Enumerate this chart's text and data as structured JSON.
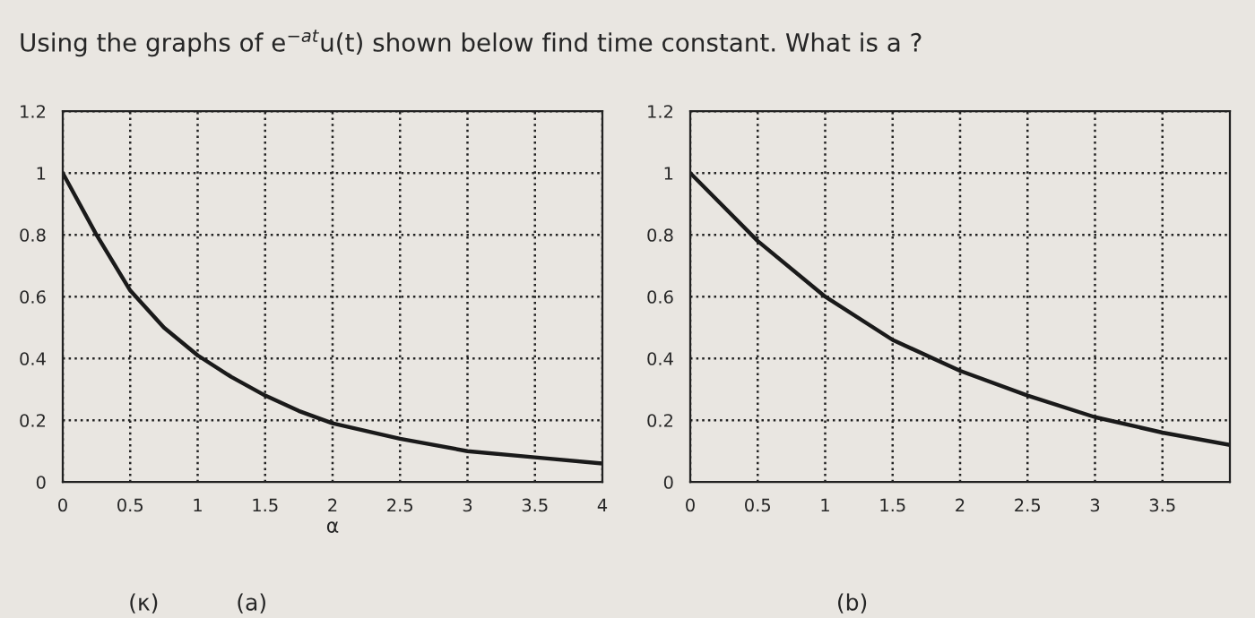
{
  "chart_data": [
    {
      "type": "line",
      "title": "Using the graphs of e$^{−at}$u(t) shown below find time constant. What is a ?",
      "xlabel": "α",
      "annotations": [
        "(κ)",
        "(a)"
      ],
      "x": [
        0,
        0.25,
        0.5,
        0.75,
        1,
        1.25,
        1.5,
        1.75,
        2,
        2.5,
        3,
        3.5,
        4
      ],
      "series": [
        {
          "color": "#1a1a1a",
          "values": [
            1,
            0.8,
            0.62,
            0.5,
            0.41,
            0.34,
            0.28,
            0.23,
            0.19,
            0.14,
            0.1,
            0.08,
            0.06
          ]
        }
      ],
      "xlim": [
        0,
        4
      ],
      "xticks": [
        0,
        0.5,
        1,
        1.5,
        2,
        2.5,
        3,
        3.5,
        4
      ],
      "ylim": [
        0,
        1.2
      ],
      "yticks": [
        0,
        0.2,
        0.4,
        0.6,
        0.8,
        1,
        1.2
      ],
      "grid": true,
      "line_style": "solid"
    },
    {
      "type": "line",
      "annotations": [
        "(b)"
      ],
      "x": [
        0,
        0.5,
        1,
        1.5,
        2,
        2.5,
        3,
        3.5,
        4
      ],
      "series": [
        {
          "color": "#1a1a1a",
          "values": [
            1,
            0.78,
            0.6,
            0.46,
            0.36,
            0.28,
            0.21,
            0.16,
            0.12
          ]
        }
      ],
      "xlim": [
        0,
        4
      ],
      "xticks": [
        0,
        0.5,
        1,
        1.5,
        2,
        2.5,
        3,
        3.5
      ],
      "ylim": [
        0,
        1.2
      ],
      "yticks": [
        0,
        0.2,
        0.4,
        0.6,
        0.8,
        1,
        1.2
      ],
      "grid": true,
      "line_style": "solid"
    }
  ]
}
